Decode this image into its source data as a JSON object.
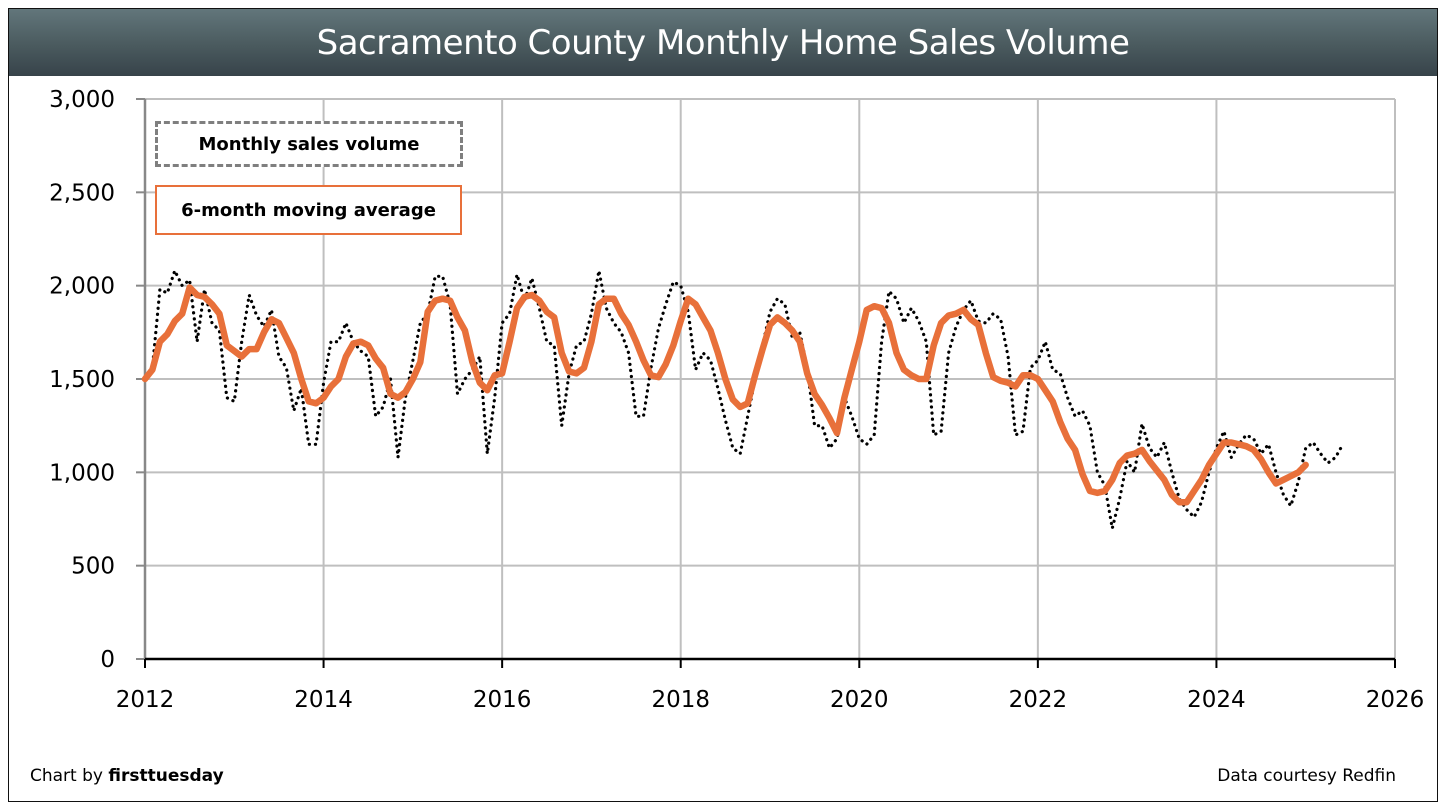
{
  "title": "Sacramento County Monthly Home Sales Volume",
  "footer": {
    "chart_by_prefix": "Chart by ",
    "chart_by_brand": "firsttuesday",
    "source": "Data courtesy Redfin"
  },
  "colors": {
    "moving_average": "#e8703a",
    "monthly": "#000000",
    "grid": "#bfbfbf",
    "title_bar": "#4a5a5e"
  },
  "chart_data": {
    "type": "line",
    "title": "Sacramento County Monthly Home Sales Volume",
    "xlabel": "",
    "ylabel": "",
    "xlim": [
      2012,
      2026
    ],
    "ylim": [
      0,
      3000
    ],
    "x_ticks": [
      "2012",
      "2014",
      "2016",
      "2018",
      "2020",
      "2022",
      "2024",
      "2026"
    ],
    "y_ticks": [
      "0",
      "500",
      "1,000",
      "1,500",
      "2,000",
      "2,500",
      "3,000"
    ],
    "grid": true,
    "legend_position": "top-left",
    "x_start": "2012-01",
    "x_frequency": "monthly",
    "series": [
      {
        "name": "Monthly sales volume",
        "style": "dotted",
        "values": [
          1500,
          1560,
          1980,
          1960,
          2080,
          2000,
          2030,
          1700,
          1980,
          1800,
          1760,
          1400,
          1380,
          1700,
          1950,
          1840,
          1780,
          1870,
          1620,
          1560,
          1330,
          1450,
          1150,
          1150,
          1480,
          1700,
          1700,
          1800,
          1700,
          1650,
          1620,
          1300,
          1350,
          1500,
          1080,
          1400,
          1600,
          1800,
          1850,
          2050,
          2050,
          1900,
          1420,
          1500,
          1550,
          1620,
          1100,
          1400,
          1800,
          1850,
          2060,
          1920,
          2040,
          1880,
          1700,
          1680,
          1250,
          1530,
          1680,
          1700,
          1850,
          2080,
          1880,
          1800,
          1750,
          1640,
          1300,
          1300,
          1560,
          1770,
          1900,
          2020,
          2000,
          1860,
          1550,
          1640,
          1600,
          1450,
          1280,
          1130,
          1100,
          1300,
          1500,
          1680,
          1860,
          1930,
          1900,
          1720,
          1750,
          1560,
          1250,
          1250,
          1130,
          1180,
          1400,
          1300,
          1180,
          1150,
          1200,
          1700,
          1970,
          1930,
          1800,
          1880,
          1810,
          1700,
          1200,
          1220,
          1640,
          1780,
          1870,
          1920,
          1810,
          1800,
          1850,
          1820,
          1620,
          1200,
          1220,
          1560,
          1600,
          1700,
          1550,
          1530,
          1400,
          1300,
          1330,
          1250,
          1000,
          930,
          700,
          860,
          1060,
          1000,
          1260,
          1130,
          1080,
          1160,
          1000,
          860,
          800,
          760,
          840,
          1000,
          1130,
          1220,
          1080,
          1150,
          1200,
          1180,
          1100,
          1150,
          1000,
          880,
          820,
          950,
          1130,
          1160,
          1100,
          1050,
          1080,
          1150
        ]
      },
      {
        "name": "6-month moving average",
        "style": "solid",
        "values": [
          1500,
          1550,
          1700,
          1740,
          1810,
          1850,
          1990,
          1950,
          1940,
          1900,
          1850,
          1680,
          1650,
          1620,
          1660,
          1660,
          1750,
          1820,
          1800,
          1720,
          1640,
          1500,
          1380,
          1370,
          1400,
          1460,
          1500,
          1620,
          1690,
          1700,
          1680,
          1610,
          1560,
          1420,
          1400,
          1430,
          1500,
          1590,
          1860,
          1920,
          1930,
          1920,
          1830,
          1760,
          1590,
          1480,
          1440,
          1520,
          1530,
          1700,
          1880,
          1940,
          1950,
          1920,
          1860,
          1830,
          1640,
          1540,
          1530,
          1560,
          1700,
          1900,
          1930,
          1930,
          1850,
          1790,
          1700,
          1600,
          1520,
          1510,
          1580,
          1680,
          1810,
          1930,
          1900,
          1830,
          1760,
          1640,
          1500,
          1390,
          1350,
          1370,
          1520,
          1660,
          1790,
          1830,
          1800,
          1760,
          1700,
          1530,
          1420,
          1360,
          1290,
          1210,
          1400,
          1550,
          1700,
          1870,
          1890,
          1880,
          1800,
          1640,
          1550,
          1520,
          1500,
          1500,
          1680,
          1800,
          1840,
          1850,
          1870,
          1820,
          1790,
          1640,
          1510,
          1490,
          1480,
          1460,
          1520,
          1520,
          1500,
          1440,
          1380,
          1270,
          1180,
          1120,
          990,
          900,
          890,
          900,
          960,
          1050,
          1090,
          1100,
          1120,
          1060,
          1010,
          960,
          880,
          840,
          840,
          900,
          960,
          1040,
          1100,
          1160,
          1160,
          1150,
          1140,
          1120,
          1070,
          1000,
          940,
          960,
          980,
          1000,
          1040
        ]
      }
    ]
  }
}
